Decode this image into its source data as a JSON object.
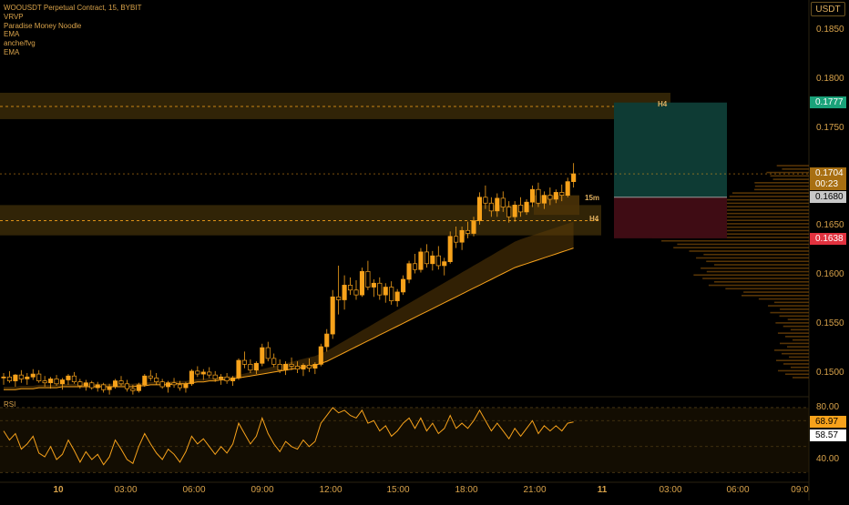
{
  "legend": {
    "symbol": "WOOUSDT Perpetual Contract, 15, BYBIT",
    "indicators": [
      "VRVP",
      "Paradise Money Noodle",
      "EMA",
      "anche/fvg",
      "EMA"
    ]
  },
  "rsi_label": "RSI",
  "currency_button": "USDT",
  "price_axis": [
    "0.1850",
    "0.1800",
    "0.1750",
    "0.1650",
    "0.1600",
    "0.1550",
    "0.1500"
  ],
  "rsi_axis": [
    "80.00",
    "40.00"
  ],
  "price_tags": {
    "take_profit": "0.1777",
    "last_price": "0.1704",
    "countdown": "00:23",
    "entry": "0.1680",
    "stop": "0.1638"
  },
  "rsi_tags": {
    "rsi_value": "68.97",
    "rsi_ma": "58.57"
  },
  "zone_labels": {
    "upper_zone": "H4",
    "lower_zone": "H4",
    "fvg": "15m"
  },
  "time_axis": [
    "10",
    "03:00",
    "06:00",
    "09:00",
    "12:00",
    "15:00",
    "18:00",
    "21:00",
    "11",
    "03:00",
    "06:00",
    "09:0"
  ],
  "colors": {
    "background": "#000000",
    "accent": "#f7a21b",
    "zone": "#3a2a08",
    "tp_box": "#0e3b34",
    "sl_box": "#3f0c14",
    "tp_tag": "#1aa27a",
    "entry_tag": "#c8c8c8",
    "stop_tag": "#e2323f",
    "last_tag": "#a86f12"
  },
  "chart_data": {
    "type": "candlestick",
    "title": "WOOUSDT Perpetual Contract, 15, BYBIT",
    "ylim": [
      0.1465,
      0.188
    ],
    "candles": [
      [
        0.1495,
        0.15,
        0.1488,
        0.1496
      ],
      [
        0.1496,
        0.1502,
        0.149,
        0.1492
      ],
      [
        0.1492,
        0.1499,
        0.1486,
        0.1498
      ],
      [
        0.1498,
        0.1503,
        0.149,
        0.1494
      ],
      [
        0.1494,
        0.15,
        0.1488,
        0.1496
      ],
      [
        0.1496,
        0.1504,
        0.1493,
        0.1499
      ],
      [
        0.1499,
        0.1503,
        0.149,
        0.1492
      ],
      [
        0.1492,
        0.1497,
        0.1486,
        0.149
      ],
      [
        0.149,
        0.1496,
        0.1484,
        0.1494
      ],
      [
        0.1494,
        0.1498,
        0.1487,
        0.1489
      ],
      [
        0.1489,
        0.1495,
        0.1483,
        0.1493
      ],
      [
        0.1493,
        0.1499,
        0.1488,
        0.1497
      ],
      [
        0.1497,
        0.1501,
        0.1489,
        0.1491
      ],
      [
        0.1491,
        0.1494,
        0.1484,
        0.1487
      ],
      [
        0.1487,
        0.1493,
        0.1482,
        0.149
      ],
      [
        0.149,
        0.1492,
        0.1483,
        0.1485
      ],
      [
        0.1485,
        0.1491,
        0.1481,
        0.1488
      ],
      [
        0.1488,
        0.149,
        0.148,
        0.1483
      ],
      [
        0.1483,
        0.1489,
        0.1478,
        0.1486
      ],
      [
        0.1486,
        0.1494,
        0.1484,
        0.1492
      ],
      [
        0.1492,
        0.1497,
        0.1487,
        0.1489
      ],
      [
        0.1489,
        0.1493,
        0.1481,
        0.1484
      ],
      [
        0.1484,
        0.1488,
        0.1478,
        0.1482
      ],
      [
        0.1482,
        0.149,
        0.148,
        0.1488
      ],
      [
        0.1488,
        0.1499,
        0.1486,
        0.1497
      ],
      [
        0.1497,
        0.1503,
        0.1492,
        0.1495
      ],
      [
        0.1495,
        0.15,
        0.1488,
        0.1491
      ],
      [
        0.1491,
        0.1494,
        0.1484,
        0.1486
      ],
      [
        0.1486,
        0.1492,
        0.148,
        0.149
      ],
      [
        0.149,
        0.1495,
        0.1485,
        0.1488
      ],
      [
        0.1488,
        0.1492,
        0.1482,
        0.1485
      ],
      [
        0.1485,
        0.1491,
        0.148,
        0.1489
      ],
      [
        0.1489,
        0.1504,
        0.1487,
        0.1502
      ],
      [
        0.1502,
        0.1507,
        0.1496,
        0.1499
      ],
      [
        0.1499,
        0.1504,
        0.1493,
        0.1501
      ],
      [
        0.1501,
        0.1506,
        0.1495,
        0.1498
      ],
      [
        0.1498,
        0.1502,
        0.1491,
        0.1494
      ],
      [
        0.1494,
        0.1499,
        0.1488,
        0.1496
      ],
      [
        0.1496,
        0.15,
        0.1489,
        0.1492
      ],
      [
        0.1492,
        0.1497,
        0.1487,
        0.1495
      ],
      [
        0.1495,
        0.1515,
        0.1493,
        0.1513
      ],
      [
        0.1513,
        0.1522,
        0.1505,
        0.1509
      ],
      [
        0.1509,
        0.1514,
        0.15,
        0.1503
      ],
      [
        0.1503,
        0.1512,
        0.1499,
        0.151
      ],
      [
        0.151,
        0.153,
        0.1507,
        0.1526
      ],
      [
        0.1526,
        0.1532,
        0.1512,
        0.1515
      ],
      [
        0.1515,
        0.152,
        0.1506,
        0.1509
      ],
      [
        0.1509,
        0.1514,
        0.15,
        0.1503
      ],
      [
        0.1503,
        0.1512,
        0.1498,
        0.1509
      ],
      [
        0.1509,
        0.1516,
        0.1503,
        0.1507
      ],
      [
        0.1507,
        0.1512,
        0.15,
        0.1504
      ],
      [
        0.1504,
        0.151,
        0.1497,
        0.1508
      ],
      [
        0.1508,
        0.1515,
        0.1501,
        0.1505
      ],
      [
        0.1505,
        0.1511,
        0.1499,
        0.1509
      ],
      [
        0.1509,
        0.153,
        0.1507,
        0.1527
      ],
      [
        0.1527,
        0.1545,
        0.1522,
        0.154
      ],
      [
        0.154,
        0.1585,
        0.1535,
        0.1578
      ],
      [
        0.1578,
        0.161,
        0.156,
        0.1575
      ],
      [
        0.1575,
        0.16,
        0.1565,
        0.159
      ],
      [
        0.159,
        0.1598,
        0.158,
        0.1585
      ],
      [
        0.1585,
        0.1595,
        0.1575,
        0.158
      ],
      [
        0.158,
        0.1608,
        0.1578,
        0.1604
      ],
      [
        0.1604,
        0.1615,
        0.1585,
        0.1588
      ],
      [
        0.1588,
        0.1596,
        0.1578,
        0.1592
      ],
      [
        0.1592,
        0.1598,
        0.1575,
        0.158
      ],
      [
        0.158,
        0.1592,
        0.1572,
        0.1588
      ],
      [
        0.1588,
        0.1594,
        0.157,
        0.1574
      ],
      [
        0.1574,
        0.1586,
        0.1568,
        0.1583
      ],
      [
        0.1583,
        0.16,
        0.158,
        0.1596
      ],
      [
        0.1596,
        0.1615,
        0.1592,
        0.1612
      ],
      [
        0.1612,
        0.1622,
        0.1602,
        0.1606
      ],
      [
        0.1606,
        0.1628,
        0.1603,
        0.1624
      ],
      [
        0.1624,
        0.1632,
        0.1608,
        0.1612
      ],
      [
        0.1612,
        0.1625,
        0.1605,
        0.162
      ],
      [
        0.162,
        0.163,
        0.1606,
        0.161
      ],
      [
        0.161,
        0.1618,
        0.16,
        0.1614
      ],
      [
        0.1614,
        0.1645,
        0.1612,
        0.164
      ],
      [
        0.164,
        0.165,
        0.1628,
        0.1634
      ],
      [
        0.1634,
        0.165,
        0.1626,
        0.1646
      ],
      [
        0.1646,
        0.1655,
        0.1638,
        0.1643
      ],
      [
        0.1643,
        0.166,
        0.164,
        0.1656
      ],
      [
        0.1656,
        0.1685,
        0.1652,
        0.168
      ],
      [
        0.168,
        0.1692,
        0.1668,
        0.1674
      ],
      [
        0.1674,
        0.168,
        0.166,
        0.1666
      ],
      [
        0.1666,
        0.1684,
        0.166,
        0.1679
      ],
      [
        0.1679,
        0.1686,
        0.1665,
        0.167
      ],
      [
        0.167,
        0.1676,
        0.1654,
        0.166
      ],
      [
        0.166,
        0.1676,
        0.1655,
        0.1672
      ],
      [
        0.1672,
        0.168,
        0.166,
        0.1665
      ],
      [
        0.1665,
        0.1678,
        0.1662,
        0.1675
      ],
      [
        0.1675,
        0.1692,
        0.167,
        0.1688
      ],
      [
        0.1688,
        0.1695,
        0.167,
        0.1674
      ],
      [
        0.1674,
        0.1686,
        0.1668,
        0.1682
      ],
      [
        0.1682,
        0.169,
        0.1672,
        0.1678
      ],
      [
        0.1678,
        0.1688,
        0.1674,
        0.1685
      ],
      [
        0.1685,
        0.1693,
        0.1676,
        0.1682
      ],
      [
        0.1682,
        0.17,
        0.168,
        0.1696
      ],
      [
        0.1696,
        0.1715,
        0.169,
        0.1704
      ]
    ],
    "ema": [
      0.1483,
      0.1483,
      0.1483,
      0.1484,
      0.1484,
      0.1484,
      0.1485,
      0.1485,
      0.1485,
      0.1485,
      0.1486,
      0.1486,
      0.1486,
      0.1486,
      0.1486,
      0.1486,
      0.1486,
      0.1486,
      0.1486,
      0.1486,
      0.1486,
      0.1486,
      0.1486,
      0.1487,
      0.1487,
      0.1488,
      0.1488,
      0.1488,
      0.1488,
      0.1489,
      0.1489,
      0.1489,
      0.149,
      0.1491,
      0.1491,
      0.1492,
      0.1492,
      0.1493,
      0.1493,
      0.1494,
      0.1495,
      0.1496,
      0.1497,
      0.1498,
      0.1499,
      0.15,
      0.1501,
      0.1502,
      0.1503,
      0.1504,
      0.1505,
      0.1506,
      0.1507,
      0.1508,
      0.151,
      0.1512,
      0.1515,
      0.1518,
      0.1521,
      0.1524,
      0.1527,
      0.153,
      0.1533,
      0.1536,
      0.1539,
      0.1542,
      0.1545,
      0.1548,
      0.1551,
      0.1554,
      0.1557,
      0.156,
      0.1563,
      0.1566,
      0.1569,
      0.1572,
      0.1575,
      0.1578,
      0.1581,
      0.1584,
      0.1587,
      0.159,
      0.1593,
      0.1596,
      0.1599,
      0.1602,
      0.1605,
      0.1608,
      0.161,
      0.1612,
      0.1614,
      0.1616,
      0.1618,
      0.162,
      0.1622,
      0.1624,
      0.1626,
      0.1628
    ],
    "rsi": [
      62,
      55,
      60,
      48,
      52,
      58,
      45,
      42,
      50,
      40,
      44,
      55,
      47,
      38,
      46,
      40,
      44,
      36,
      42,
      55,
      48,
      40,
      37,
      50,
      60,
      52,
      45,
      40,
      48,
      44,
      38,
      46,
      58,
      52,
      56,
      50,
      44,
      50,
      45,
      52,
      68,
      60,
      52,
      58,
      72,
      60,
      52,
      46,
      54,
      50,
      48,
      55,
      50,
      54,
      68,
      74,
      80,
      76,
      78,
      74,
      72,
      78,
      68,
      70,
      62,
      66,
      58,
      62,
      68,
      72,
      64,
      72,
      62,
      68,
      60,
      64,
      74,
      64,
      68,
      64,
      70,
      78,
      70,
      62,
      68,
      62,
      56,
      64,
      58,
      64,
      70,
      60,
      66,
      62,
      66,
      62,
      68,
      69
    ],
    "levels": {
      "take_profit": 0.1777,
      "entry": 0.168,
      "stop": 0.1638,
      "last": 0.1704
    },
    "rsi_bands": [
      80,
      70,
      50,
      30,
      40
    ]
  }
}
